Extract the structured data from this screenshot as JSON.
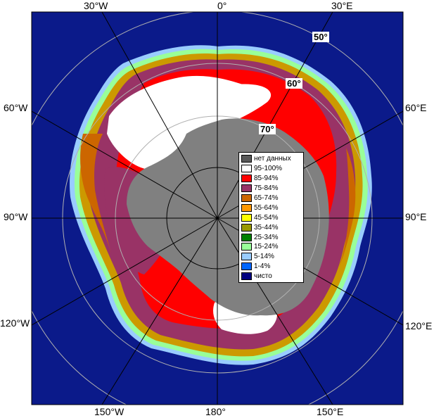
{
  "map": {
    "colors": {
      "ocean": "#0b1a8a",
      "land_gray": "#808080",
      "dark_gray": "#555555",
      "grid": "#000000",
      "graticule_light": "#b0b0b0"
    },
    "longitude_labels": {
      "lon_30w": "30°W",
      "lon_0": "0°",
      "lon_30e": "30°E",
      "lon_60w": "60°W",
      "lon_60e": "60°E",
      "lon_90w": "90°W",
      "lon_90e": "90°E",
      "lon_120w": "120°W",
      "lon_120e": "120°E",
      "lon_150w": "150°W",
      "lon_180": "180°",
      "lon_150e": "150°E"
    },
    "latitude_labels": {
      "lat_50": "50°",
      "lat_60": "60°",
      "lat_70": "70°"
    }
  },
  "legend": {
    "items": [
      {
        "label": "нет данных",
        "color": "#595959"
      },
      {
        "label": "95-100%",
        "color": "#ffffff"
      },
      {
        "label": "85-94%",
        "color": "#ff0000"
      },
      {
        "label": "75-84%",
        "color": "#993366"
      },
      {
        "label": "65-74%",
        "color": "#cc6600"
      },
      {
        "label": "55-64%",
        "color": "#ff9900"
      },
      {
        "label": "45-54%",
        "color": "#ffff00"
      },
      {
        "label": "35-44%",
        "color": "#999900"
      },
      {
        "label": "25-34%",
        "color": "#008000"
      },
      {
        "label": "15-24%",
        "color": "#99ff99"
      },
      {
        "label": "5-14%",
        "color": "#99ccff"
      },
      {
        "label": "1-4%",
        "color": "#0066ff"
      },
      {
        "label": "чисто",
        "color": "#000080"
      }
    ]
  }
}
